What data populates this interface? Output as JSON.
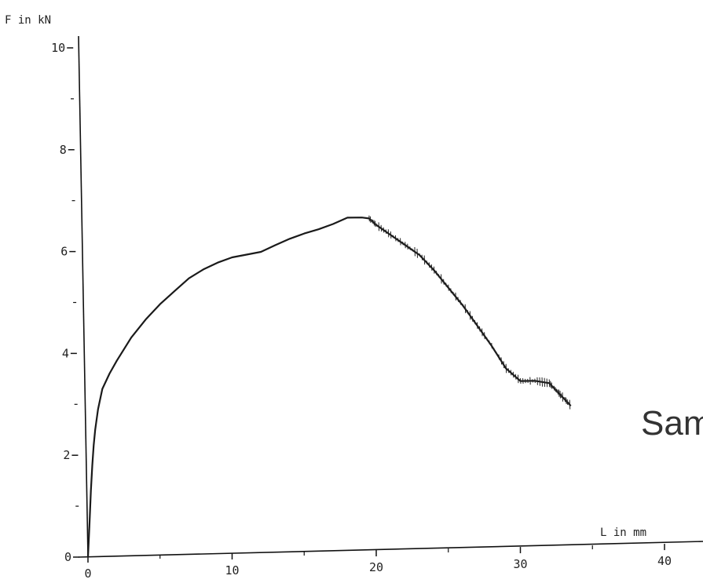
{
  "chart_data": {
    "type": "line",
    "ylabel": "F in kN",
    "xlabel": "L in mm",
    "annotation": "Sam",
    "xlim": [
      0,
      42
    ],
    "ylim": [
      0,
      10
    ],
    "x_ticks": [
      "0",
      "10",
      "20",
      "30",
      "40"
    ],
    "y_ticks": [
      "0",
      "2",
      "4",
      "6",
      "8",
      "10"
    ],
    "grid": false,
    "series": [
      {
        "x": [
          0.0,
          0.1,
          0.2,
          0.3,
          0.4,
          0.5,
          0.7,
          1.0,
          1.5,
          2.0,
          3.0,
          4.0,
          5.0,
          6.0,
          7.0,
          8.0,
          9.0,
          10.0,
          11.0,
          12.0,
          13.0,
          14.0,
          15.0,
          16.0,
          17.0,
          18.0,
          19.0,
          19.5,
          20.0,
          21.0,
          22.0,
          23.0,
          24.0,
          25.0,
          26.0,
          27.0,
          28.0,
          29.0,
          30.0,
          31.0,
          32.0,
          32.5,
          33.0,
          33.5
        ],
        "y": [
          0.0,
          0.6,
          1.3,
          1.8,
          2.2,
          2.5,
          2.9,
          3.3,
          3.6,
          3.85,
          4.3,
          4.65,
          4.95,
          5.2,
          5.45,
          5.62,
          5.75,
          5.85,
          5.9,
          5.95,
          6.08,
          6.2,
          6.3,
          6.38,
          6.48,
          6.6,
          6.6,
          6.58,
          6.45,
          6.25,
          6.05,
          5.85,
          5.55,
          5.2,
          4.85,
          4.45,
          4.05,
          3.6,
          3.35,
          3.35,
          3.3,
          3.15,
          3.0,
          2.85
        ]
      }
    ]
  }
}
